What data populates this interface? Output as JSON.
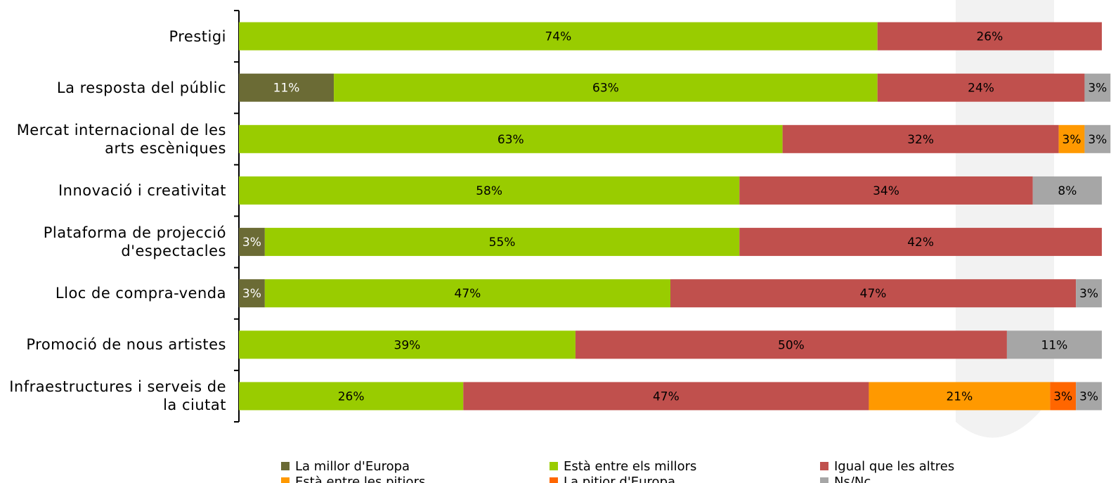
{
  "chart_data": {
    "type": "stacked-barh",
    "categories": [
      "Prestigi",
      "La resposta del públic",
      "Mercat internacional de les arts escèniques",
      "Innovació i creativitat",
      "Plataforma de projecció d'espectacles",
      "Lloc de compra-venda",
      "Promoció de nous artistes",
      "Infraestructures i serveis de la ciutat"
    ],
    "xlim": [
      0,
      100
    ],
    "series": [
      {
        "name": "La millor d'Europa",
        "color": "#6b6b35",
        "label_color": "#ffffff",
        "values": [
          null,
          11,
          null,
          null,
          3,
          3,
          null,
          null
        ],
        "value_labels": [
          null,
          "11%",
          null,
          null,
          "3%",
          "3%",
          null,
          null
        ]
      },
      {
        "name": "Està entre els millors",
        "color": "#99cc00",
        "values": [
          74,
          63,
          63,
          58,
          55,
          47,
          39,
          26
        ],
        "value_labels": [
          "74%",
          "63%",
          "63%",
          "58%",
          "55%",
          "47%",
          "39%",
          "26%"
        ]
      },
      {
        "name": "Igual que les altres",
        "color": "#c0504d",
        "values": [
          26,
          24,
          32,
          34,
          42,
          47,
          50,
          47
        ],
        "value_labels": [
          "26%",
          "24%",
          "32%",
          "34%",
          "42%",
          "47%",
          "50%",
          "47%"
        ]
      },
      {
        "name": "Està entre les pitjors",
        "color": "#ff9900",
        "values": [
          null,
          null,
          3,
          null,
          null,
          null,
          null,
          21
        ],
        "value_labels": [
          null,
          null,
          "3%",
          null,
          null,
          null,
          null,
          "21%"
        ]
      },
      {
        "name": "La pitjor d'Europa",
        "color": "#ff6600",
        "values": [
          null,
          null,
          null,
          null,
          null,
          null,
          null,
          3
        ],
        "value_labels": [
          null,
          null,
          null,
          null,
          null,
          null,
          null,
          "3%"
        ]
      },
      {
        "name": "Ns/Nc",
        "color": "#a6a6a6",
        "values": [
          null,
          3,
          3,
          8,
          null,
          3,
          11,
          3
        ],
        "value_labels": [
          null,
          "3%",
          "3%",
          "8%",
          null,
          "3%",
          "11%",
          "3%"
        ]
      }
    ]
  }
}
